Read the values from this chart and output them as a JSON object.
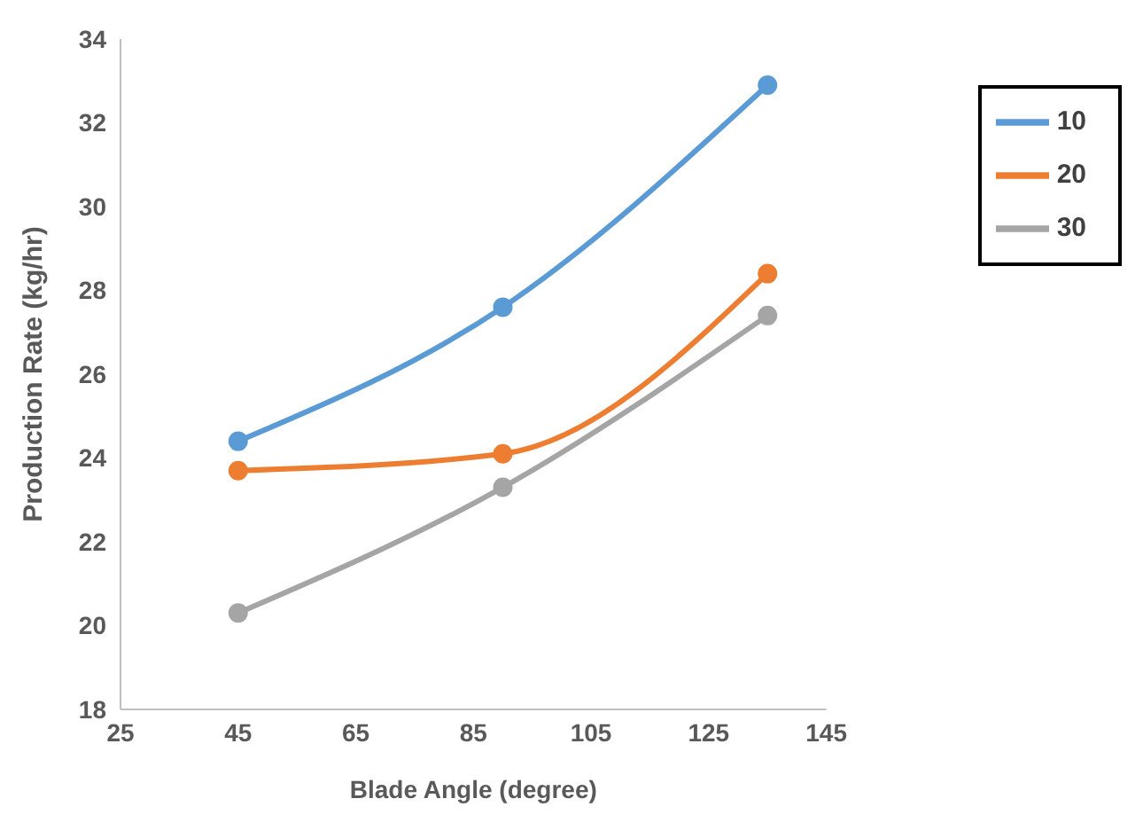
{
  "chart_data": {
    "type": "line",
    "xlabel": "Blade Angle (degree)",
    "ylabel": "Production Rate (kg/hr)",
    "x": [
      45,
      90,
      135
    ],
    "series": [
      {
        "name": "10",
        "color": "#5b9bd5",
        "values": [
          24.4,
          27.6,
          32.9
        ]
      },
      {
        "name": "20",
        "color": "#ed7d31",
        "values": [
          23.7,
          24.1,
          28.4
        ]
      },
      {
        "name": "30",
        "color": "#a5a5a5",
        "values": [
          20.3,
          23.3,
          27.4
        ]
      }
    ],
    "xlim": [
      25,
      145
    ],
    "xticks": [
      25,
      45,
      65,
      85,
      105,
      125,
      145
    ],
    "ylim": [
      18,
      34
    ],
    "yticks": [
      18,
      20,
      22,
      24,
      26,
      28,
      30,
      32,
      34
    ],
    "legend": "top right",
    "marker": "circle",
    "line_style": "solid"
  }
}
